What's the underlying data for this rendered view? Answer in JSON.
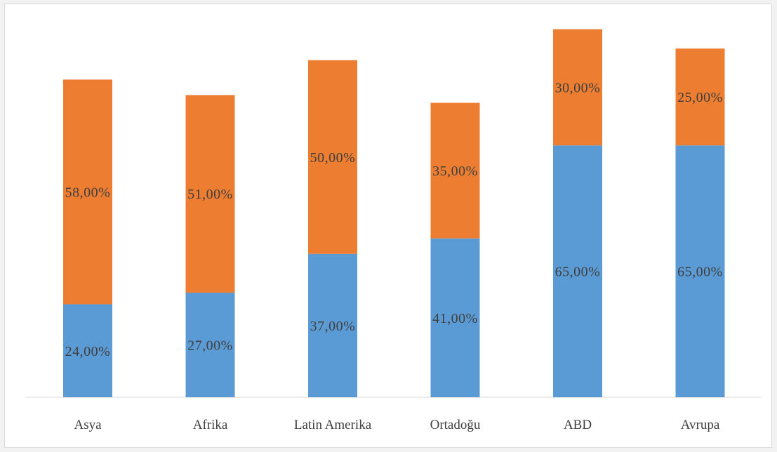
{
  "chart_data": {
    "type": "bar",
    "stacked": true,
    "categories": [
      "Asya",
      "Afrika",
      "Latin Amerika",
      "Ortadoğu",
      "ABD",
      "Avrupa"
    ],
    "series": [
      {
        "color": "#5b9bd5",
        "values": [
          24,
          27,
          37,
          41,
          65,
          65
        ],
        "labels": [
          "24,00%",
          "27,00%",
          "37,00%",
          "41,00%",
          "65,00%",
          "65,00%"
        ]
      },
      {
        "color": "#ed7d31",
        "values": [
          58,
          51,
          50,
          35,
          30,
          25
        ],
        "labels": [
          "58,00%",
          "51,00%",
          "50,00%",
          "35,00%",
          "30,00%",
          "25,00%"
        ]
      }
    ],
    "title": "",
    "xlabel": "",
    "ylabel": "",
    "ylim": [
      0,
      100
    ],
    "grid": false,
    "legend": "none"
  }
}
